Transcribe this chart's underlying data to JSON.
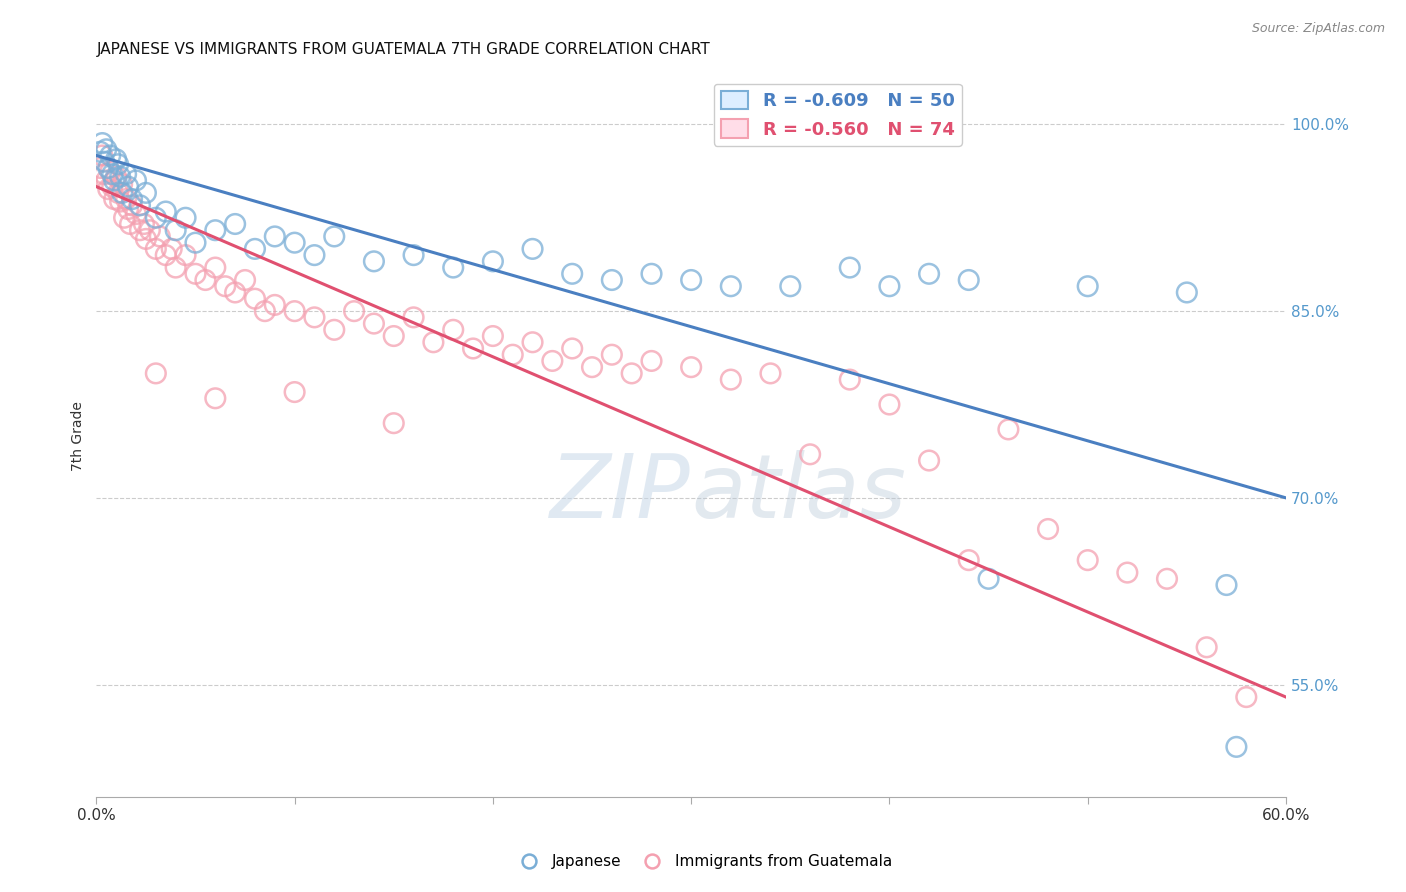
{
  "title": "JAPANESE VS IMMIGRANTS FROM GUATEMALA 7TH GRADE CORRELATION CHART",
  "source": "Source: ZipAtlas.com",
  "ylabel": "7th Grade",
  "xlim": [
    0.0,
    60.0
  ],
  "ylim": [
    46.0,
    104.0
  ],
  "yticks": [
    55.0,
    70.0,
    85.0,
    100.0
  ],
  "xticks": [
    0.0,
    10.0,
    20.0,
    30.0,
    40.0,
    50.0,
    60.0
  ],
  "xtick_labels": [
    "0.0%",
    "",
    "",
    "",
    "",
    "",
    "60.0%"
  ],
  "legend_r1": "R = -0.609",
  "legend_n1": "N = 50",
  "legend_r2": "R = -0.560",
  "legend_n2": "N = 74",
  "blue_scatter": [
    [
      0.2,
      97.8
    ],
    [
      0.3,
      98.5
    ],
    [
      0.4,
      97.0
    ],
    [
      0.5,
      98.0
    ],
    [
      0.6,
      96.5
    ],
    [
      0.7,
      97.5
    ],
    [
      0.8,
      96.0
    ],
    [
      0.9,
      95.5
    ],
    [
      1.0,
      97.2
    ],
    [
      1.1,
      96.8
    ],
    [
      1.2,
      95.8
    ],
    [
      1.3,
      94.5
    ],
    [
      1.5,
      96.0
    ],
    [
      1.6,
      95.0
    ],
    [
      1.8,
      94.0
    ],
    [
      2.0,
      95.5
    ],
    [
      2.2,
      93.5
    ],
    [
      2.5,
      94.5
    ],
    [
      3.0,
      92.5
    ],
    [
      3.5,
      93.0
    ],
    [
      4.0,
      91.5
    ],
    [
      4.5,
      92.5
    ],
    [
      5.0,
      90.5
    ],
    [
      6.0,
      91.5
    ],
    [
      7.0,
      92.0
    ],
    [
      8.0,
      90.0
    ],
    [
      9.0,
      91.0
    ],
    [
      10.0,
      90.5
    ],
    [
      11.0,
      89.5
    ],
    [
      12.0,
      91.0
    ],
    [
      14.0,
      89.0
    ],
    [
      16.0,
      89.5
    ],
    [
      18.0,
      88.5
    ],
    [
      20.0,
      89.0
    ],
    [
      22.0,
      90.0
    ],
    [
      24.0,
      88.0
    ],
    [
      26.0,
      87.5
    ],
    [
      28.0,
      88.0
    ],
    [
      30.0,
      87.5
    ],
    [
      32.0,
      87.0
    ],
    [
      35.0,
      87.0
    ],
    [
      38.0,
      88.5
    ],
    [
      40.0,
      87.0
    ],
    [
      42.0,
      88.0
    ],
    [
      44.0,
      87.5
    ],
    [
      50.0,
      87.0
    ],
    [
      55.0,
      86.5
    ],
    [
      57.0,
      63.0
    ],
    [
      57.5,
      50.0
    ],
    [
      45.0,
      63.5
    ]
  ],
  "pink_scatter": [
    [
      0.2,
      96.5
    ],
    [
      0.3,
      97.5
    ],
    [
      0.4,
      96.0
    ],
    [
      0.5,
      95.5
    ],
    [
      0.6,
      94.8
    ],
    [
      0.7,
      96.2
    ],
    [
      0.8,
      95.0
    ],
    [
      0.9,
      94.0
    ],
    [
      1.0,
      95.8
    ],
    [
      1.1,
      94.5
    ],
    [
      1.2,
      93.8
    ],
    [
      1.3,
      95.2
    ],
    [
      1.4,
      92.5
    ],
    [
      1.5,
      94.0
    ],
    [
      1.6,
      93.2
    ],
    [
      1.7,
      92.0
    ],
    [
      1.8,
      93.5
    ],
    [
      2.0,
      92.8
    ],
    [
      2.2,
      91.5
    ],
    [
      2.4,
      92.0
    ],
    [
      2.5,
      90.8
    ],
    [
      2.7,
      91.5
    ],
    [
      3.0,
      90.0
    ],
    [
      3.2,
      91.0
    ],
    [
      3.5,
      89.5
    ],
    [
      3.8,
      90.0
    ],
    [
      4.0,
      88.5
    ],
    [
      4.5,
      89.5
    ],
    [
      5.0,
      88.0
    ],
    [
      5.5,
      87.5
    ],
    [
      6.0,
      88.5
    ],
    [
      6.5,
      87.0
    ],
    [
      7.0,
      86.5
    ],
    [
      7.5,
      87.5
    ],
    [
      8.0,
      86.0
    ],
    [
      8.5,
      85.0
    ],
    [
      9.0,
      85.5
    ],
    [
      10.0,
      85.0
    ],
    [
      11.0,
      84.5
    ],
    [
      12.0,
      83.5
    ],
    [
      13.0,
      85.0
    ],
    [
      14.0,
      84.0
    ],
    [
      15.0,
      83.0
    ],
    [
      16.0,
      84.5
    ],
    [
      17.0,
      82.5
    ],
    [
      18.0,
      83.5
    ],
    [
      19.0,
      82.0
    ],
    [
      20.0,
      83.0
    ],
    [
      21.0,
      81.5
    ],
    [
      22.0,
      82.5
    ],
    [
      23.0,
      81.0
    ],
    [
      24.0,
      82.0
    ],
    [
      25.0,
      80.5
    ],
    [
      26.0,
      81.5
    ],
    [
      27.0,
      80.0
    ],
    [
      28.0,
      81.0
    ],
    [
      30.0,
      80.5
    ],
    [
      32.0,
      79.5
    ],
    [
      34.0,
      80.0
    ],
    [
      36.0,
      73.5
    ],
    [
      38.0,
      79.5
    ],
    [
      40.0,
      77.5
    ],
    [
      42.0,
      73.0
    ],
    [
      44.0,
      65.0
    ],
    [
      46.0,
      75.5
    ],
    [
      48.0,
      67.5
    ],
    [
      50.0,
      65.0
    ],
    [
      52.0,
      64.0
    ],
    [
      54.0,
      63.5
    ],
    [
      56.0,
      58.0
    ],
    [
      58.0,
      54.0
    ],
    [
      3.0,
      80.0
    ],
    [
      6.0,
      78.0
    ],
    [
      10.0,
      78.5
    ],
    [
      15.0,
      76.0
    ]
  ],
  "blue_line_x": [
    0.0,
    60.0
  ],
  "blue_line_y": [
    97.5,
    70.0
  ],
  "pink_line_x": [
    0.0,
    60.0
  ],
  "pink_line_y": [
    95.0,
    54.0
  ],
  "blue_color": "#7aaed6",
  "pink_color": "#f4a0b0",
  "blue_line_color": "#4a7fc1",
  "pink_line_color": "#e05070",
  "watermark_zip": "ZIP",
  "watermark_atlas": "atlas",
  "background_color": "#ffffff",
  "grid_color": "#cccccc",
  "title_fontsize": 11,
  "tick_label_color_right": "#5599cc",
  "tick_label_color_x": "#333333"
}
